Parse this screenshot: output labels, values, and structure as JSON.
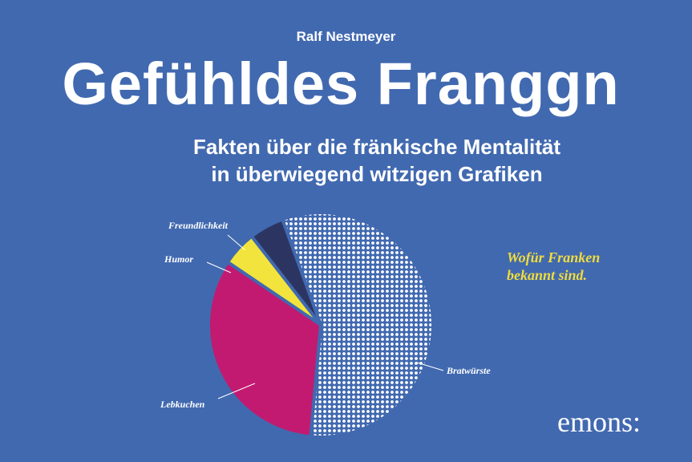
{
  "cover": {
    "author": "Ralf Nestmeyer",
    "title": "Gefühldes Franggn",
    "subtitle": "Fakten über die fränkische Mentalität in überwiegend witzigen Grafiken",
    "publisher": "emons:"
  },
  "chart_data": {
    "type": "pie",
    "title": "Wofür Franken bekannt sind.",
    "categories": [
      "Bratwürste",
      "Lebkuchen",
      "Humor",
      "Freundlichkeit"
    ],
    "values": [
      57,
      33,
      5,
      5
    ],
    "colors": [
      "#ffffff",
      "#c21a70",
      "#f2e43c",
      "#2c3561"
    ]
  }
}
